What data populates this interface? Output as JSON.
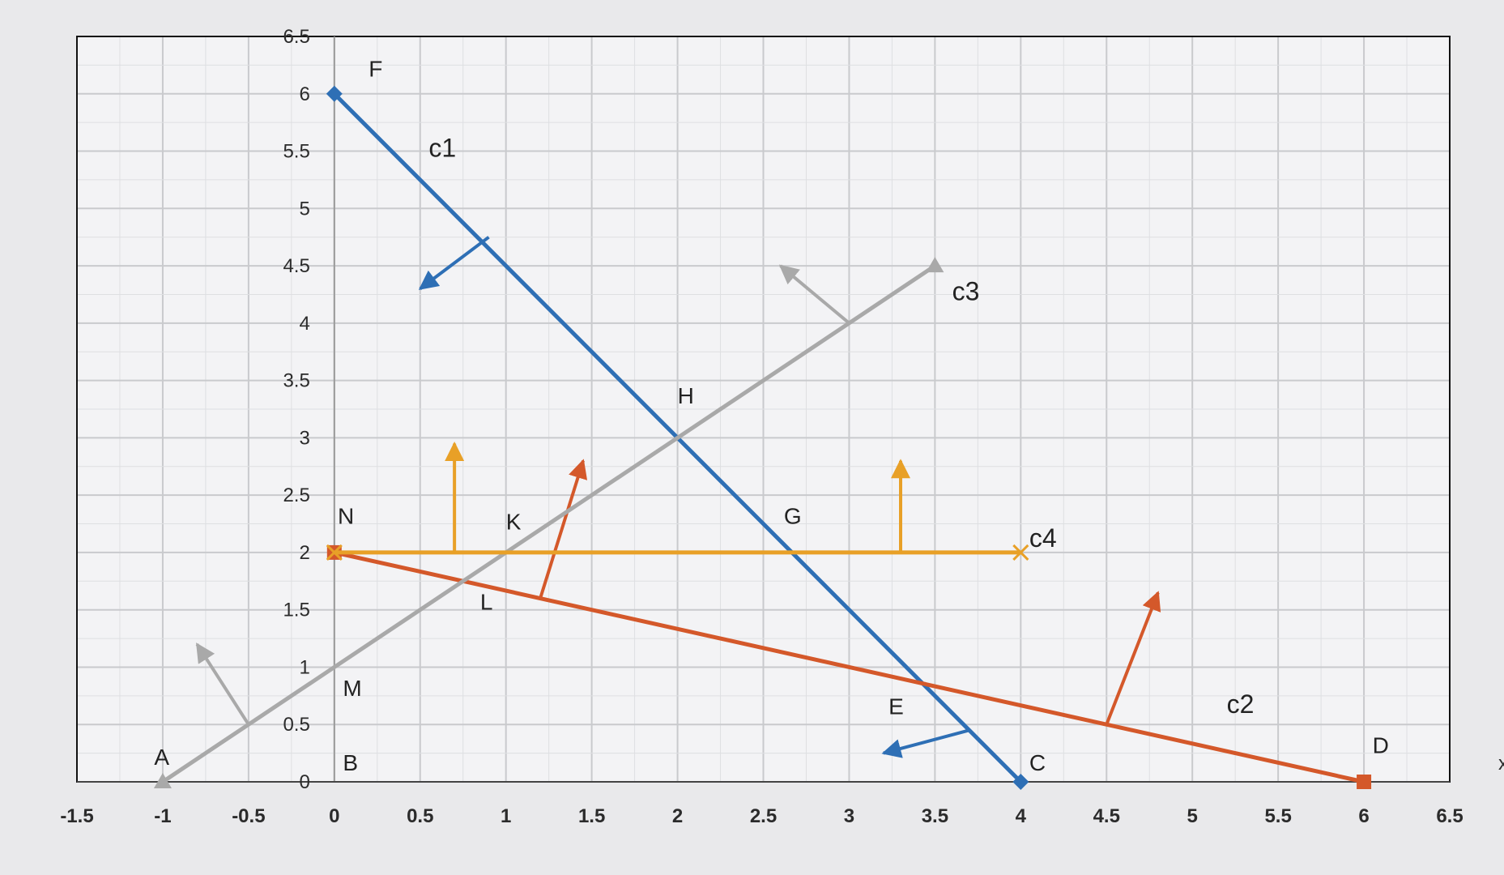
{
  "chart_data": {
    "type": "line",
    "xlim": [
      -1.5,
      6.5
    ],
    "ylim": [
      0,
      6.5
    ],
    "grid": true,
    "x_ticks": [
      {
        "value": -1.5,
        "label": "-1.5"
      },
      {
        "value": -1,
        "label": "-1"
      },
      {
        "value": -0.5,
        "label": "-0.5"
      },
      {
        "value": 0,
        "label": "0"
      },
      {
        "value": 0.5,
        "label": "0.5"
      },
      {
        "value": 1,
        "label": "1"
      },
      {
        "value": 1.5,
        "label": "1.5"
      },
      {
        "value": 2,
        "label": "2"
      },
      {
        "value": 2.5,
        "label": "2.5"
      },
      {
        "value": 3,
        "label": "3"
      },
      {
        "value": 3.5,
        "label": "3.5"
      },
      {
        "value": 4,
        "label": "4"
      },
      {
        "value": 4.5,
        "label": "4.5"
      },
      {
        "value": 5,
        "label": "5"
      },
      {
        "value": 5.5,
        "label": "5.5"
      },
      {
        "value": 6,
        "label": "6"
      },
      {
        "value": 6.5,
        "label": "6.5"
      }
    ],
    "y_ticks": [
      {
        "value": 0,
        "label": "0"
      },
      {
        "value": 0.5,
        "label": "0.5"
      },
      {
        "value": 1,
        "label": "1"
      },
      {
        "value": 1.5,
        "label": "1.5"
      },
      {
        "value": 2,
        "label": "2"
      },
      {
        "value": 2.5,
        "label": "2.5"
      },
      {
        "value": 3,
        "label": "3"
      },
      {
        "value": 3.5,
        "label": "3.5"
      },
      {
        "value": 4,
        "label": "4"
      },
      {
        "value": 4.5,
        "label": "4.5"
      },
      {
        "value": 5,
        "label": "5"
      },
      {
        "value": 5.5,
        "label": "5.5"
      },
      {
        "value": 6,
        "label": "6"
      },
      {
        "value": 6.5,
        "label": "6.5"
      }
    ],
    "x_axis_letter": "x",
    "series": [
      {
        "name": "c1",
        "color": "#2e6fb5",
        "marker": "diamond",
        "x": [
          0,
          4
        ],
        "y": [
          6,
          0
        ],
        "label_at": [
          0.55,
          5.45
        ],
        "arrows": [
          {
            "from": [
              0.9,
              4.75
            ],
            "to": [
              0.5,
              4.3
            ]
          },
          {
            "from": [
              3.7,
              0.45
            ],
            "to": [
              3.2,
              0.25
            ]
          }
        ]
      },
      {
        "name": "c2",
        "color": "#d4582a",
        "marker": "square",
        "x": [
          0,
          6
        ],
        "y": [
          2,
          0
        ],
        "label_at": [
          5.2,
          0.6
        ],
        "arrows": [
          {
            "from": [
              1.2,
              1.6
            ],
            "to": [
              1.45,
              2.8
            ]
          },
          {
            "from": [
              4.5,
              0.5
            ],
            "to": [
              4.8,
              1.65
            ]
          }
        ]
      },
      {
        "name": "c3",
        "color": "#a9a9a9",
        "marker": "triangle",
        "x": [
          -1,
          0,
          3.5
        ],
        "y": [
          0,
          1,
          4.5
        ],
        "label_at": [
          3.6,
          4.2
        ],
        "arrows": [
          {
            "from": [
              3.0,
              4.0
            ],
            "to": [
              2.6,
              4.5
            ]
          },
          {
            "from": [
              -0.5,
              0.5
            ],
            "to": [
              -0.8,
              1.2
            ]
          }
        ]
      },
      {
        "name": "c4",
        "color": "#e8a027",
        "marker": "x",
        "x": [
          0,
          4
        ],
        "y": [
          2,
          2
        ],
        "label_at": [
          4.05,
          2.05
        ],
        "arrows": [
          {
            "from": [
              0.7,
              2
            ],
            "to": [
              0.7,
              2.95
            ]
          },
          {
            "from": [
              3.3,
              2
            ],
            "to": [
              3.3,
              2.8
            ]
          }
        ]
      }
    ],
    "points": [
      {
        "name": "A",
        "x": -1,
        "y": 0,
        "dx": -0.05,
        "dy": 0.15
      },
      {
        "name": "B",
        "x": 0,
        "y": 0,
        "dx": 0.05,
        "dy": 0.1
      },
      {
        "name": "C",
        "x": 4,
        "y": 0,
        "dx": 0.05,
        "dy": 0.1
      },
      {
        "name": "D",
        "x": 6,
        "y": 0,
        "dx": 0.05,
        "dy": 0.25
      },
      {
        "name": "E",
        "x": 3.33,
        "y": 0.89,
        "dx": -0.1,
        "dy": -0.3
      },
      {
        "name": "F",
        "x": 0,
        "y": 6,
        "dx": 0.2,
        "dy": 0.15
      },
      {
        "name": "G",
        "x": 2.67,
        "y": 2,
        "dx": -0.05,
        "dy": 0.25
      },
      {
        "name": "H",
        "x": 2,
        "y": 3,
        "dx": 0,
        "dy": 0.3
      },
      {
        "name": "K",
        "x": 1,
        "y": 2,
        "dx": 0,
        "dy": 0.2
      },
      {
        "name": "L",
        "x": 0.75,
        "y": 1.75,
        "dx": 0.1,
        "dy": -0.25
      },
      {
        "name": "M",
        "x": 0,
        "y": 1,
        "dx": 0.05,
        "dy": -0.25
      },
      {
        "name": "N",
        "x": 0,
        "y": 2,
        "dx": 0.02,
        "dy": 0.25
      }
    ]
  }
}
